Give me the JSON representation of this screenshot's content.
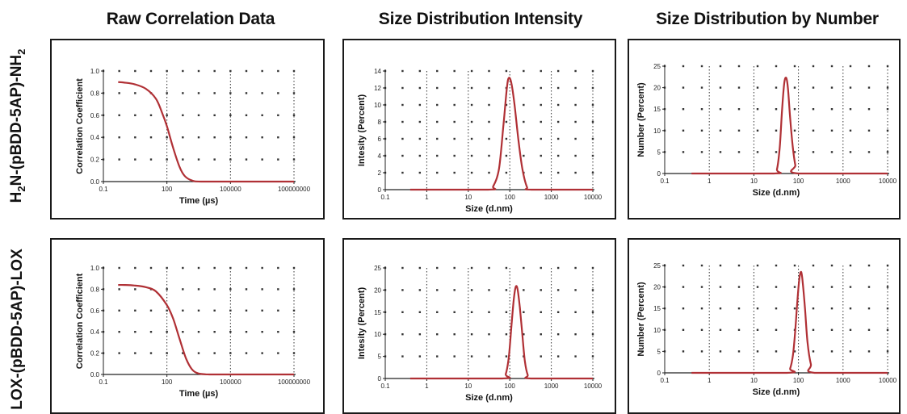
{
  "column_titles": [
    "Raw Correlation Data",
    "Size Distribution Intensity",
    "Size Distribution by Number"
  ],
  "row_labels": [
    {
      "main": "H",
      "sub1": "2",
      "mid": "N-(pBDD-5AP)-NH",
      "sub2": "2"
    },
    {
      "main": "LOX-(pBDD-5AP)-LOX",
      "sub1": "",
      "mid": "",
      "sub2": ""
    }
  ],
  "colors": {
    "curve": "#b03035",
    "grid": "#333333",
    "axis": "#222222"
  },
  "chart_data": [
    {
      "type": "line",
      "row": 0,
      "col": 0,
      "title": "",
      "xlabel": "Time (µs)",
      "ylabel": "Correlation Coefficient",
      "xscale": "log",
      "xlim": [
        0.1,
        100000000
      ],
      "ylim": [
        0,
        1.0
      ],
      "xticks": [
        0.1,
        100,
        100000,
        100000000
      ],
      "xtick_labels": [
        "0.1",
        "100",
        "100000",
        "100000000"
      ],
      "yticks": [
        0,
        0.2,
        0.4,
        0.6,
        0.8,
        1.0
      ],
      "ytick_labels": [
        "0.0",
        "0.2",
        "0.4",
        "0.6",
        "0.8",
        "1.0"
      ],
      "grid_x": [
        100,
        100000,
        100000000
      ],
      "grid_y": [
        0.2,
        0.4,
        0.6,
        0.8,
        1.0
      ],
      "x": [
        0.5,
        1,
        3,
        10,
        30,
        60,
        100,
        200,
        400,
        700,
        1500,
        4000,
        100000,
        100000000
      ],
      "y": [
        0.9,
        0.895,
        0.88,
        0.84,
        0.75,
        0.62,
        0.5,
        0.3,
        0.13,
        0.05,
        0.01,
        0.0,
        0.0,
        0.0
      ]
    },
    {
      "type": "line",
      "row": 0,
      "col": 1,
      "title": "",
      "xlabel": "Size (d.nm)",
      "ylabel": "Intesity (Percent)",
      "xscale": "log",
      "xlim": [
        0.1,
        10000
      ],
      "ylim": [
        0,
        14
      ],
      "xticks": [
        0.1,
        1,
        10,
        100,
        1000,
        10000
      ],
      "xtick_labels": [
        "0.1",
        "1",
        "10",
        "100",
        "1000",
        "10000"
      ],
      "yticks": [
        0,
        2,
        4,
        6,
        8,
        10,
        12,
        14
      ],
      "ytick_labels": [
        "0",
        "2",
        "4",
        "6",
        "8",
        "10",
        "12",
        "14"
      ],
      "grid_x": [
        1,
        10,
        100,
        1000,
        10000
      ],
      "grid_y": [
        2,
        4,
        6,
        8,
        10,
        12,
        14
      ],
      "x": [
        0.4,
        30,
        40,
        55,
        70,
        85,
        95,
        110,
        130,
        160,
        200,
        260,
        330,
        10000
      ],
      "y": [
        0,
        0,
        0.4,
        2.5,
        7.5,
        12,
        13.2,
        12.5,
        10,
        6,
        2.5,
        0.3,
        0,
        0
      ]
    },
    {
      "type": "line",
      "row": 0,
      "col": 2,
      "title": "",
      "xlabel": "Size (d.nm)",
      "ylabel": "Number (Percent)",
      "xscale": "log",
      "xlim": [
        0.1,
        10000
      ],
      "ylim": [
        0,
        25
      ],
      "xticks": [
        0.1,
        1,
        10,
        100,
        1000,
        10000
      ],
      "xtick_labels": [
        "0.1",
        "1",
        "10",
        "100",
        "1000",
        "10000"
      ],
      "yticks": [
        0,
        5,
        10,
        15,
        20,
        25
      ],
      "ytick_labels": [
        "0",
        "5",
        "10",
        "15",
        "20",
        "25"
      ],
      "grid_x": [
        1,
        10,
        100,
        1000,
        10000
      ],
      "grid_y": [
        5,
        10,
        15,
        20,
        25
      ],
      "x": [
        0.4,
        28,
        33,
        38,
        43,
        48,
        53,
        58,
        65,
        75,
        85,
        100,
        10000
      ],
      "y": [
        0,
        0,
        1,
        6,
        15,
        21,
        22.3,
        20,
        13,
        6,
        2,
        0,
        0
      ]
    },
    {
      "type": "line",
      "row": 1,
      "col": 0,
      "title": "",
      "xlabel": "Time (µs)",
      "ylabel": "Correlation Coefficient",
      "xscale": "log",
      "xlim": [
        0.1,
        100000000
      ],
      "ylim": [
        0,
        1.0
      ],
      "xticks": [
        0.1,
        100,
        100000,
        100000000
      ],
      "xtick_labels": [
        "0.1",
        "100",
        "100000",
        "100000000"
      ],
      "yticks": [
        0,
        0.2,
        0.4,
        0.6,
        0.8,
        1.0
      ],
      "ytick_labels": [
        "0.0",
        "0.2",
        "0.4",
        "0.6",
        "0.8",
        "1.0"
      ],
      "grid_x": [
        100,
        100000,
        100000000
      ],
      "grid_y": [
        0.2,
        0.4,
        0.6,
        0.8,
        1.0
      ],
      "x": [
        0.5,
        1,
        3,
        10,
        30,
        100,
        200,
        400,
        800,
        1500,
        3000,
        10000,
        100000,
        100000000
      ],
      "y": [
        0.84,
        0.84,
        0.835,
        0.82,
        0.78,
        0.65,
        0.52,
        0.33,
        0.15,
        0.05,
        0.01,
        0.0,
        0.0,
        0.0
      ]
    },
    {
      "type": "line",
      "row": 1,
      "col": 1,
      "title": "",
      "xlabel": "Size (d.nm)",
      "ylabel": "Intesity (Percent)",
      "xscale": "log",
      "xlim": [
        0.1,
        10000
      ],
      "ylim": [
        0,
        25
      ],
      "xticks": [
        0.1,
        1,
        10,
        100,
        1000,
        10000
      ],
      "xtick_labels": [
        "0.1",
        "1",
        "10",
        "100",
        "1000",
        "10000"
      ],
      "yticks": [
        0,
        5,
        10,
        15,
        20,
        25
      ],
      "ytick_labels": [
        "0",
        "5",
        "10",
        "15",
        "20",
        "25"
      ],
      "grid_x": [
        1,
        10,
        100,
        1000,
        10000
      ],
      "grid_y": [
        5,
        10,
        15,
        20,
        25
      ],
      "x": [
        0.4,
        65,
        80,
        95,
        110,
        125,
        140,
        155,
        175,
        200,
        230,
        270,
        320,
        10000
      ],
      "y": [
        0,
        0,
        1,
        5,
        12,
        18,
        20.8,
        20,
        16,
        10,
        4,
        0.8,
        0,
        0
      ]
    },
    {
      "type": "line",
      "row": 1,
      "col": 2,
      "title": "",
      "xlabel": "Size (d.nm)",
      "ylabel": "Number (Percent)",
      "xscale": "log",
      "xlim": [
        0.1,
        10000
      ],
      "ylim": [
        0,
        25
      ],
      "xticks": [
        0.1,
        1,
        10,
        100,
        1000,
        10000
      ],
      "xtick_labels": [
        "0.1",
        "1",
        "10",
        "100",
        "1000",
        "10000"
      ],
      "yticks": [
        0,
        5,
        10,
        15,
        20,
        25
      ],
      "ytick_labels": [
        "0",
        "5",
        "10",
        "15",
        "20",
        "25"
      ],
      "grid_x": [
        1,
        10,
        100,
        1000,
        10000
      ],
      "grid_y": [
        5,
        10,
        15,
        20,
        25
      ],
      "x": [
        0.4,
        55,
        65,
        75,
        85,
        95,
        105,
        115,
        125,
        140,
        160,
        190,
        230,
        10000
      ],
      "y": [
        0,
        0,
        1,
        4,
        10,
        17,
        22,
        23.5,
        21,
        15,
        7,
        2,
        0,
        0
      ]
    }
  ]
}
